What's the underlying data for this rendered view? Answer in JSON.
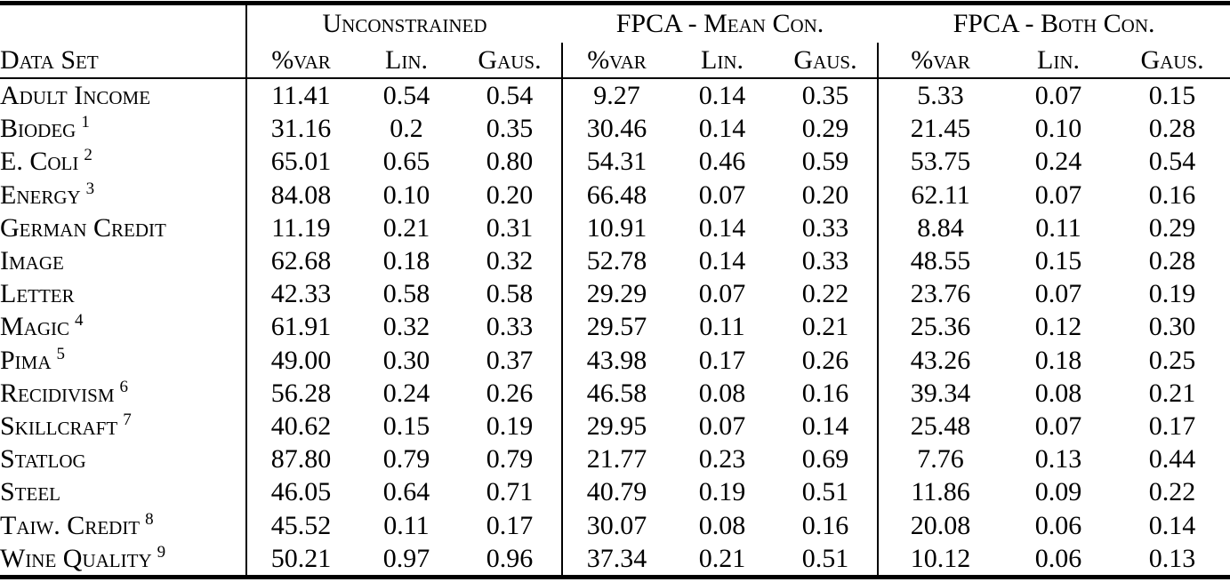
{
  "colors": {
    "text": "#000000",
    "background": "#ffffff",
    "rule": "#000000"
  },
  "table": {
    "row_header": "Data Set",
    "col_groups": [
      {
        "label": "Unconstrained"
      },
      {
        "label": "FPCA - Mean Con."
      },
      {
        "label": "FPCA - Both Con."
      }
    ],
    "sub_headers": [
      "%var",
      "Lin.",
      "Gaus."
    ],
    "rows": [
      {
        "name": "Adult Income",
        "sup": "",
        "cells": [
          {
            "v": "11.41"
          },
          {
            "v": "0.54"
          },
          {
            "v": "0.54"
          },
          {
            "v": "9.27"
          },
          {
            "v": "0.14"
          },
          {
            "v": "0.35"
          },
          {
            "v": "5.33"
          },
          {
            "v": "0.07",
            "b": true
          },
          {
            "v": "0.15",
            "b": true
          }
        ]
      },
      {
        "name": "Biodeg",
        "sup": "1",
        "cells": [
          {
            "v": "31.16"
          },
          {
            "v": "0.2"
          },
          {
            "v": "0.35"
          },
          {
            "v": "30.46"
          },
          {
            "v": "0.14"
          },
          {
            "v": "0.29"
          },
          {
            "v": "21.45"
          },
          {
            "v": "0.10",
            "b": true
          },
          {
            "v": "0.28",
            "b": true
          }
        ]
      },
      {
        "name": "E. Coli",
        "sup": "2",
        "cells": [
          {
            "v": "65.01"
          },
          {
            "v": "0.65"
          },
          {
            "v": "0.80"
          },
          {
            "v": "54.31"
          },
          {
            "v": "0.46"
          },
          {
            "v": "0.59"
          },
          {
            "v": "53.75"
          },
          {
            "v": "0.24",
            "b": true
          },
          {
            "v": "0.54",
            "b": true
          }
        ]
      },
      {
        "name": "Energy",
        "sup": "3",
        "cells": [
          {
            "v": "84.08"
          },
          {
            "v": "0.10"
          },
          {
            "v": "0.20"
          },
          {
            "v": "66.48"
          },
          {
            "v": "0.07",
            "b": true
          },
          {
            "v": "0.20"
          },
          {
            "v": "62.11"
          },
          {
            "v": "0.07",
            "b": true
          },
          {
            "v": "0.16",
            "b": true
          }
        ]
      },
      {
        "name": "German Credit",
        "sup": "",
        "cells": [
          {
            "v": "11.19"
          },
          {
            "v": "0.21"
          },
          {
            "v": "0.31"
          },
          {
            "v": "10.91"
          },
          {
            "v": "0.14"
          },
          {
            "v": "0.33"
          },
          {
            "v": "8.84"
          },
          {
            "v": "0.11",
            "b": true
          },
          {
            "v": "0.29",
            "b": true
          }
        ]
      },
      {
        "name": "Image",
        "sup": "",
        "cells": [
          {
            "v": "62.68"
          },
          {
            "v": "0.18"
          },
          {
            "v": "0.32"
          },
          {
            "v": "52.78"
          },
          {
            "v": "0.14",
            "b": true
          },
          {
            "v": "0.33"
          },
          {
            "v": "48.55"
          },
          {
            "v": "0.15"
          },
          {
            "v": "0.28",
            "b": true
          }
        ]
      },
      {
        "name": "Letter",
        "sup": "",
        "cells": [
          {
            "v": "42.33"
          },
          {
            "v": "0.58"
          },
          {
            "v": "0.58"
          },
          {
            "v": "29.29"
          },
          {
            "v": "0.07",
            "b": true
          },
          {
            "v": "0.22"
          },
          {
            "v": "23.76"
          },
          {
            "v": "0.07",
            "b": true
          },
          {
            "v": "0.19",
            "b": true
          }
        ]
      },
      {
        "name": "Magic",
        "sup": "4",
        "cells": [
          {
            "v": "61.91"
          },
          {
            "v": "0.32"
          },
          {
            "v": "0.33"
          },
          {
            "v": "29.57"
          },
          {
            "v": "0.11",
            "b": true
          },
          {
            "v": "0.21",
            "b": true
          },
          {
            "v": "25.36"
          },
          {
            "v": "0.12"
          },
          {
            "v": "0.30"
          }
        ]
      },
      {
        "name": "Pima",
        "sup": "5",
        "cells": [
          {
            "v": "49.00"
          },
          {
            "v": "0.30"
          },
          {
            "v": "0.37"
          },
          {
            "v": "43.98"
          },
          {
            "v": "0.17",
            "b": true
          },
          {
            "v": "0.26"
          },
          {
            "v": "43.26"
          },
          {
            "v": "0.18"
          },
          {
            "v": "0.25",
            "b": true
          }
        ]
      },
      {
        "name": "Recidivism",
        "sup": "6",
        "cells": [
          {
            "v": "56.28"
          },
          {
            "v": "0.24"
          },
          {
            "v": "0.26"
          },
          {
            "v": "46.58"
          },
          {
            "v": "0.08",
            "b": true
          },
          {
            "v": "0.16",
            "b": true
          },
          {
            "v": "39.34"
          },
          {
            "v": "0.08",
            "b": true
          },
          {
            "v": "0.21"
          }
        ]
      },
      {
        "name": "Skillcraft",
        "sup": "7",
        "cells": [
          {
            "v": "40.62"
          },
          {
            "v": "0.15"
          },
          {
            "v": "0.19"
          },
          {
            "v": "29.95"
          },
          {
            "v": "0.07",
            "b": true
          },
          {
            "v": "0.14",
            "b": true
          },
          {
            "v": "25.48"
          },
          {
            "v": "0.07",
            "b": true
          },
          {
            "v": "0.17"
          }
        ]
      },
      {
        "name": "Statlog",
        "sup": "",
        "cells": [
          {
            "v": "87.80"
          },
          {
            "v": "0.79"
          },
          {
            "v": "0.79"
          },
          {
            "v": "21.77"
          },
          {
            "v": "0.23"
          },
          {
            "v": "0.69"
          },
          {
            "v": "7.76"
          },
          {
            "v": "0.13",
            "b": true
          },
          {
            "v": "0.44",
            "b": true
          }
        ]
      },
      {
        "name": "Steel",
        "sup": "",
        "cells": [
          {
            "v": "46.05"
          },
          {
            "v": "0.64"
          },
          {
            "v": "0.71"
          },
          {
            "v": "40.79"
          },
          {
            "v": "0.19"
          },
          {
            "v": "0.51"
          },
          {
            "v": "11.86"
          },
          {
            "v": "0.09",
            "b": true
          },
          {
            "v": "0.22",
            "b": true
          }
        ]
      },
      {
        "name": "Taiw. Credit",
        "sup": "8",
        "cells": [
          {
            "v": "45.52"
          },
          {
            "v": "0.11"
          },
          {
            "v": "0.17"
          },
          {
            "v": "30.07"
          },
          {
            "v": "0.08"
          },
          {
            "v": "0.16"
          },
          {
            "v": "20.08"
          },
          {
            "v": "0.06",
            "b": true
          },
          {
            "v": "0.14",
            "b": true
          }
        ]
      },
      {
        "name": "Wine Quality",
        "sup": "9",
        "cells": [
          {
            "v": "50.21"
          },
          {
            "v": "0.97"
          },
          {
            "v": "0.96"
          },
          {
            "v": "37.34"
          },
          {
            "v": "0.21"
          },
          {
            "v": "0.51"
          },
          {
            "v": "10.12"
          },
          {
            "v": "0.06",
            "b": true
          },
          {
            "v": "0.13",
            "b": true
          }
        ]
      }
    ]
  }
}
